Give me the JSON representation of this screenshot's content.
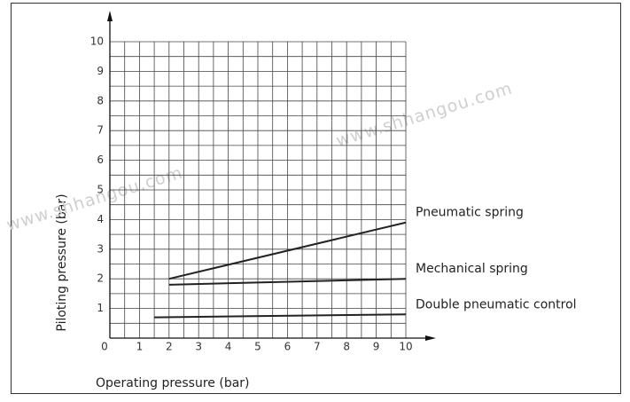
{
  "chart_data": {
    "type": "line",
    "xlabel": "Operating pressure (bar)",
    "ylabel": "Piloting pressure (bar)",
    "watermarks": [
      "www.shhangou.com",
      "www.shhangou.com"
    ],
    "xlim": [
      0,
      10
    ],
    "ylim": [
      0,
      10
    ],
    "xticks": [
      0,
      1,
      2,
      3,
      4,
      5,
      6,
      7,
      8,
      9,
      10
    ],
    "yticks": [
      0,
      1,
      2,
      3,
      4,
      5,
      6,
      7,
      8,
      9,
      10
    ],
    "xminorticks": [
      0.5,
      1.5,
      2.5,
      3.5,
      4.5,
      5.5,
      6.5,
      7.5,
      8.5,
      9.5
    ],
    "yminorticks": [
      0.5,
      1.5,
      2.5,
      3.5,
      4.5,
      5.5,
      6.5,
      7.5,
      8.5,
      9.5
    ],
    "grid": true,
    "series": [
      {
        "name": "Pneumatic spring",
        "color": "#222222",
        "x": [
          2,
          10
        ],
        "values": [
          2,
          3.9
        ]
      },
      {
        "name": "Mechanical spring",
        "color": "#222222",
        "x": [
          2,
          10
        ],
        "values": [
          1.8,
          2
        ]
      },
      {
        "name": "Double pneumatic control",
        "color": "#222222",
        "x": [
          1.5,
          10
        ],
        "values": [
          0.7,
          0.8
        ]
      }
    ]
  }
}
